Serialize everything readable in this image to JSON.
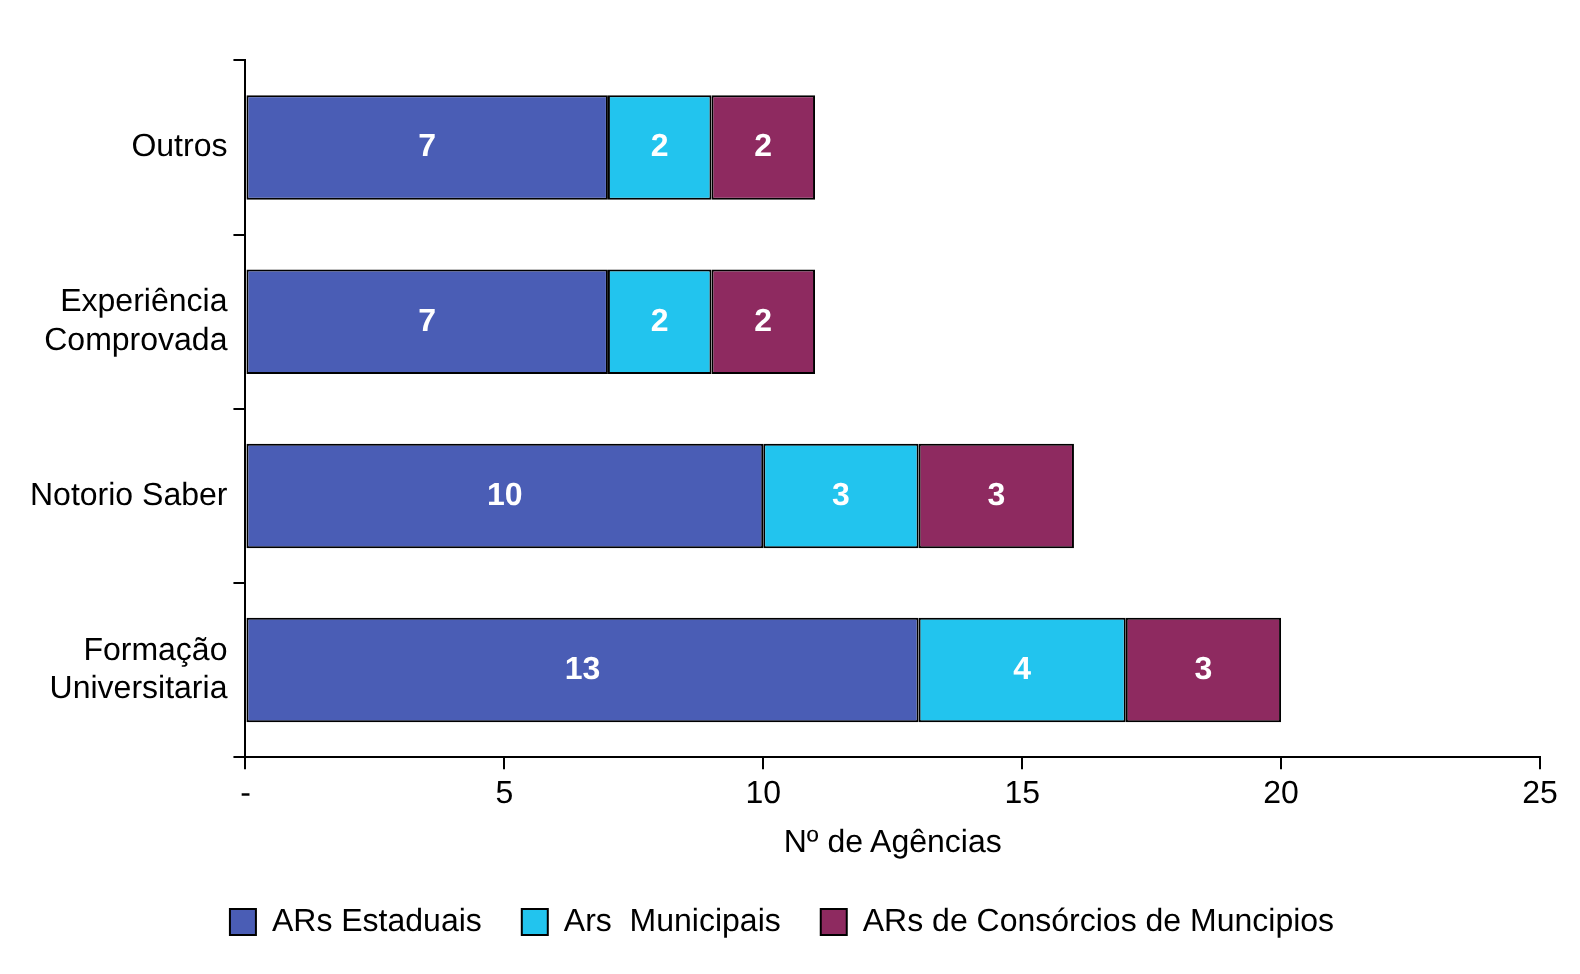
{
  "chart_data": {
    "type": "bar",
    "orientation": "horizontal",
    "stacked": true,
    "data_labels": true,
    "grid": false,
    "legend": "bottom",
    "xlabel": "Nº de Agências",
    "categories": [
      "Outros",
      "Experiência Comprovada",
      "Notorio Saber",
      "Formação Universitaria"
    ],
    "series": [
      {
        "name": "ARs Estaduais",
        "color": "#4a5db5",
        "values": [
          7,
          7,
          10,
          13
        ]
      },
      {
        "name": "Ars  Municipais",
        "color": "#22c4ee",
        "values": [
          2,
          2,
          3,
          4
        ]
      },
      {
        "name": "ARs de Consórcios de Muncipios",
        "color": "#8e2a60",
        "values": [
          2,
          2,
          3,
          3
        ]
      }
    ],
    "xlim": [
      0,
      25
    ],
    "xticks": [
      {
        "value": 0,
        "label": "-"
      },
      5,
      10,
      15,
      20,
      25
    ]
  }
}
